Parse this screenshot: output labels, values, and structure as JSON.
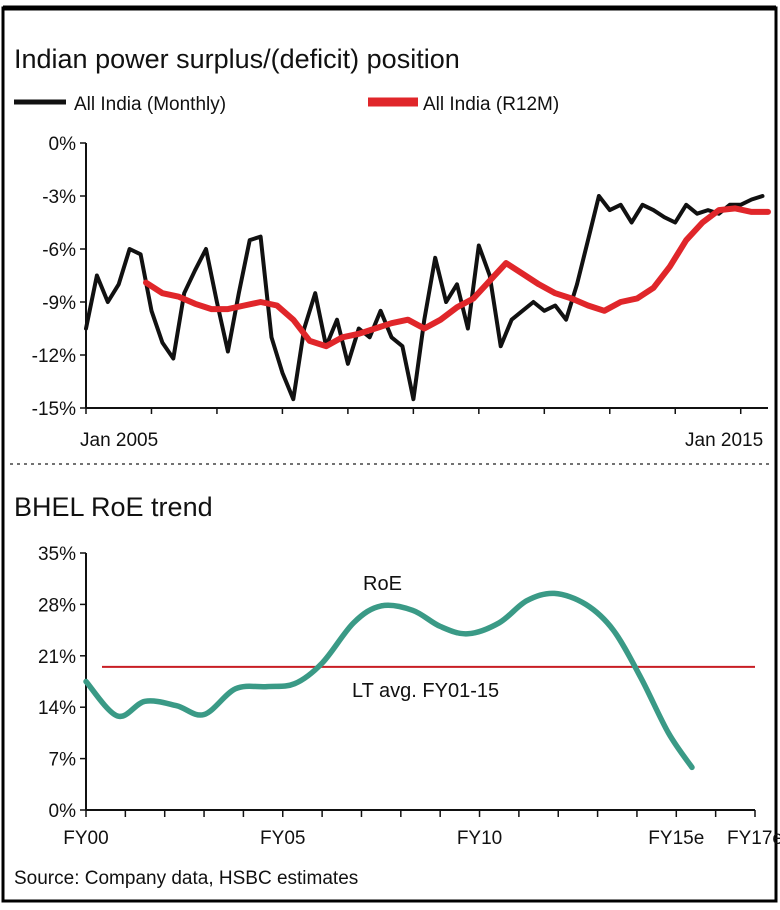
{
  "chart_data": [
    {
      "type": "line",
      "title": "Indian power surplus/(deficit) position",
      "legend": {
        "placement": "top",
        "entries": [
          {
            "name": "All India (Monthly)",
            "color": "#111111"
          },
          {
            "name": "All India (R12M)",
            "color": "#e0262a"
          }
        ]
      },
      "x_tick_labels": [
        "Jan 2005",
        "Jan 2015"
      ],
      "x_range": [
        "2005-01",
        "2015-06"
      ],
      "yticks": [
        "0%",
        "-3%",
        "-6%",
        "-9%",
        "-12%",
        "-15%"
      ],
      "ytick_values": [
        0,
        -3,
        -6,
        -9,
        -12,
        -15
      ],
      "ylim": [
        -15,
        0
      ],
      "grid": false,
      "series": [
        {
          "name": "All India (Monthly)",
          "color": "#111111",
          "x": [
            "2005-01",
            "2005-03",
            "2005-05",
            "2005-07",
            "2005-09",
            "2005-11",
            "2006-01",
            "2006-03",
            "2006-05",
            "2006-07",
            "2006-09",
            "2006-11",
            "2007-01",
            "2007-03",
            "2007-05",
            "2007-07",
            "2007-09",
            "2007-11",
            "2008-01",
            "2008-03",
            "2008-05",
            "2008-07",
            "2008-09",
            "2008-11",
            "2009-01",
            "2009-03",
            "2009-05",
            "2009-07",
            "2009-09",
            "2009-11",
            "2010-01",
            "2010-03",
            "2010-05",
            "2010-07",
            "2010-09",
            "2010-11",
            "2011-01",
            "2011-03",
            "2011-05",
            "2011-07",
            "2011-09",
            "2011-11",
            "2012-01",
            "2012-03",
            "2012-05",
            "2012-07",
            "2012-09",
            "2012-11",
            "2013-01",
            "2013-03",
            "2013-05",
            "2013-07",
            "2013-09",
            "2013-11",
            "2014-01",
            "2014-03",
            "2014-05",
            "2014-07",
            "2014-09",
            "2014-11",
            "2015-01",
            "2015-03",
            "2015-05"
          ],
          "values": [
            -10.5,
            -7.5,
            -9.0,
            -8.0,
            -6.0,
            -6.3,
            -9.5,
            -11.3,
            -12.2,
            -8.5,
            -7.2,
            -6.0,
            -9.0,
            -11.8,
            -8.5,
            -5.5,
            -5.3,
            -11.0,
            -13.0,
            -14.5,
            -10.5,
            -8.5,
            -11.5,
            -10.0,
            -12.5,
            -10.5,
            -11.0,
            -9.5,
            -11.0,
            -11.5,
            -14.5,
            -10.0,
            -6.5,
            -9.0,
            -8.0,
            -10.5,
            -5.8,
            -7.5,
            -11.5,
            -10.0,
            -9.5,
            -9.0,
            -9.5,
            -9.2,
            -10.0,
            -8.0,
            -5.5,
            -3.0,
            -3.8,
            -3.5,
            -4.5,
            -3.5,
            -3.8,
            -4.2,
            -4.5,
            -3.5,
            -4.0,
            -3.8,
            -4.0,
            -3.5,
            -3.5,
            -3.2,
            -3.0
          ],
          "note_values_approx": true
        },
        {
          "name": "All India (R12M)",
          "color": "#e0262a",
          "x": [
            "2005-12",
            "2006-03",
            "2006-06",
            "2006-09",
            "2006-12",
            "2007-03",
            "2007-06",
            "2007-09",
            "2007-12",
            "2008-03",
            "2008-06",
            "2008-09",
            "2008-12",
            "2009-03",
            "2009-06",
            "2009-09",
            "2009-12",
            "2010-03",
            "2010-06",
            "2010-09",
            "2010-12",
            "2011-03",
            "2011-06",
            "2011-09",
            "2011-12",
            "2012-03",
            "2012-06",
            "2012-09",
            "2012-12",
            "2013-03",
            "2013-06",
            "2013-09",
            "2013-12",
            "2014-03",
            "2014-06",
            "2014-09",
            "2014-12",
            "2015-03",
            "2015-06"
          ],
          "values": [
            -7.9,
            -8.5,
            -8.7,
            -9.1,
            -9.4,
            -9.4,
            -9.2,
            -9.0,
            -9.2,
            -10.0,
            -11.2,
            -11.5,
            -11.0,
            -10.8,
            -10.5,
            -10.2,
            -10.0,
            -10.5,
            -10.0,
            -9.3,
            -8.8,
            -7.8,
            -6.8,
            -7.4,
            -8.0,
            -8.5,
            -8.8,
            -9.2,
            -9.5,
            -9.0,
            -8.8,
            -8.2,
            -7.0,
            -5.5,
            -4.5,
            -3.8,
            -3.7,
            -3.9,
            -3.9
          ]
        }
      ]
    },
    {
      "type": "line",
      "title": "BHEL RoE trend",
      "x_tick_labels": [
        "FY00",
        "FY05",
        "FY10",
        "FY15e",
        "FY17e"
      ],
      "x_tick_values": [
        2000,
        2005,
        2010,
        2015,
        2017
      ],
      "yticks": [
        "35%",
        "28%",
        "21%",
        "14%",
        "7%",
        "0%"
      ],
      "ytick_values": [
        35,
        28,
        21,
        14,
        7,
        0
      ],
      "ylim": [
        0,
        35
      ],
      "xlim": [
        2000,
        2017
      ],
      "grid": false,
      "series": [
        {
          "name": "RoE",
          "color": "#3a9a86",
          "x": [
            2000.0,
            2000.8,
            2001.5,
            2002.3,
            2003.0,
            2003.8,
            2004.6,
            2005.3,
            2006.0,
            2006.8,
            2007.5,
            2008.3,
            2009.0,
            2009.7,
            2010.5,
            2011.2,
            2011.9,
            2012.7,
            2013.4,
            2014.1,
            2014.8,
            2015.4
          ],
          "values": [
            17.5,
            12.8,
            14.8,
            14.2,
            13.0,
            16.5,
            16.8,
            17.2,
            20.0,
            25.5,
            27.8,
            27.2,
            25.0,
            24.0,
            25.5,
            28.5,
            29.5,
            28.0,
            24.5,
            18.0,
            10.5,
            5.8
          ]
        }
      ],
      "reference_line": {
        "label": "LT avg. FY01-15",
        "value": 19.5,
        "color": "#c81e24"
      },
      "annotations": [
        "RoE"
      ]
    }
  ],
  "source": "Source: Company data, HSBC estimates"
}
